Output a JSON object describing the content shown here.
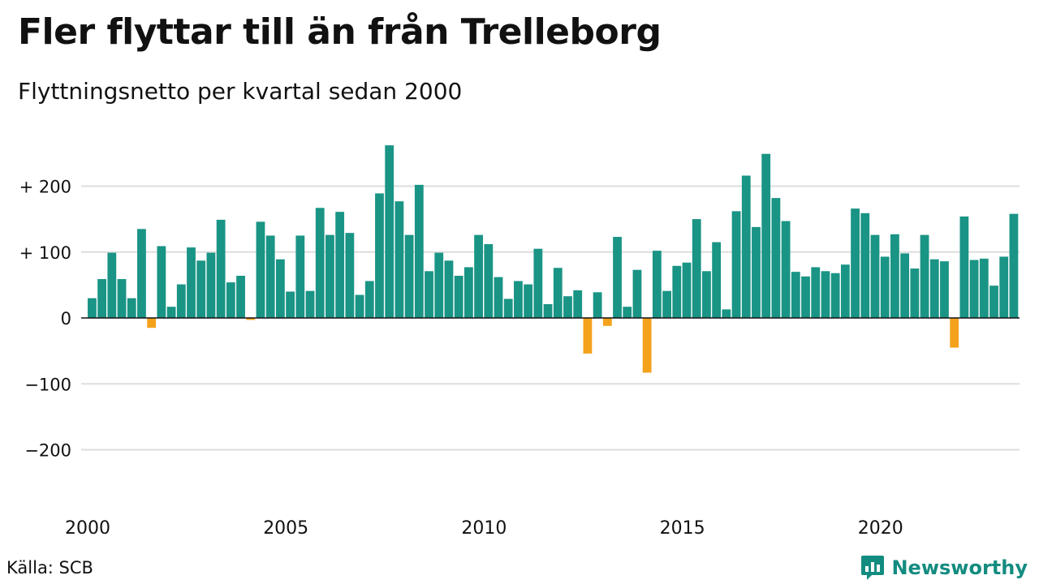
{
  "header": {
    "title": "Fler flyttar till än från Trelleborg",
    "subtitle": "Flyttningsnetto per kvartal sedan 2000"
  },
  "footer": {
    "source": "Källa: SCB",
    "brand": "Newsworthy"
  },
  "colors": {
    "positive": "#1a9485",
    "negative": "#f4a11c",
    "grid": "#dddddd",
    "brand": "#138c80"
  },
  "icons": {
    "brand_logo": "bar-chart-speech-bubble-icon"
  },
  "chart_data": {
    "type": "bar",
    "x_start_year": 2000,
    "x_tick_labels": [
      "2000",
      "2005",
      "2010",
      "2015",
      "2020"
    ],
    "y_ticks": [
      {
        "value": 200,
        "label": "+ 200"
      },
      {
        "value": 100,
        "label": "+ 100"
      },
      {
        "value": 0,
        "label": "0"
      },
      {
        "value": -100,
        "label": "−100"
      },
      {
        "value": -200,
        "label": "−200"
      }
    ],
    "ylim": [
      -240,
      270
    ],
    "grid": true,
    "values": [
      30,
      59,
      99,
      59,
      30,
      135,
      -15,
      109,
      17,
      51,
      107,
      87,
      99,
      149,
      54,
      64,
      -3,
      146,
      125,
      89,
      40,
      125,
      41,
      167,
      126,
      161,
      129,
      35,
      56,
      189,
      262,
      177,
      126,
      202,
      71,
      99,
      87,
      64,
      77,
      126,
      112,
      62,
      29,
      56,
      51,
      105,
      21,
      76,
      33,
      42,
      -54,
      39,
      -12,
      123,
      17,
      73,
      -83,
      102,
      41,
      79,
      84,
      150,
      71,
      115,
      13,
      162,
      216,
      138,
      249,
      182,
      147,
      70,
      63,
      77,
      71,
      68,
      81,
      166,
      159,
      126,
      93,
      127,
      98,
      75,
      126,
      89,
      86,
      -45,
      154,
      88,
      90,
      49,
      93,
      158
    ]
  }
}
